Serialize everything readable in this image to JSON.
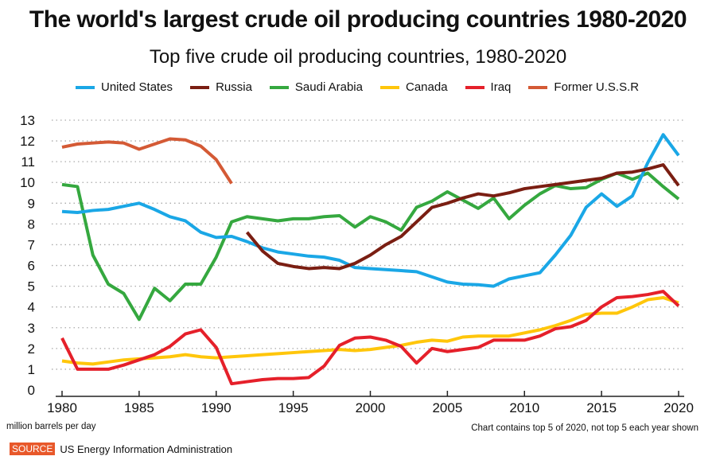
{
  "chart_data": {
    "type": "line",
    "title": "The world's largest crude oil producing countries 1980-2020",
    "subtitle": "Top five crude oil producing countries, 1980-2020",
    "ylabel": "million barrels per day",
    "note": "Chart contains top 5 of 2020, not top 5 each year shown",
    "xlim": [
      1980,
      2020
    ],
    "ylim": [
      0,
      13
    ],
    "xticks": [
      1980,
      1985,
      1990,
      1995,
      2000,
      2005,
      2010,
      2015,
      2020
    ],
    "yticks": [
      0,
      1,
      2,
      3,
      4,
      5,
      6,
      7,
      8,
      9,
      10,
      11,
      12,
      13
    ],
    "grid": true,
    "legend_position": "top",
    "series": [
      {
        "name": "United States",
        "color": "#1aa7e6",
        "start": 1980,
        "values": [
          8.6,
          8.55,
          8.65,
          8.7,
          8.85,
          9.0,
          8.7,
          8.35,
          8.15,
          7.6,
          7.35,
          7.4,
          7.15,
          6.85,
          6.65,
          6.55,
          6.45,
          6.4,
          6.25,
          5.9,
          5.85,
          5.8,
          5.75,
          5.7,
          5.45,
          5.2,
          5.1,
          5.07,
          5.0,
          5.35,
          5.5,
          5.65,
          6.5,
          7.45,
          8.8,
          9.45,
          8.85,
          9.35,
          10.95,
          12.3,
          11.3
        ]
      },
      {
        "name": "Russia",
        "color": "#7a1e12",
        "start": 1992,
        "values": [
          7.6,
          6.7,
          6.1,
          5.95,
          5.85,
          5.9,
          5.85,
          6.1,
          6.5,
          7.0,
          7.4,
          8.1,
          8.8,
          9.0,
          9.25,
          9.45,
          9.35,
          9.5,
          9.7,
          9.8,
          9.9,
          10.0,
          10.1,
          10.2,
          10.45,
          10.5,
          10.65,
          10.85,
          9.85
        ]
      },
      {
        "name": "Saudi Arabia",
        "color": "#35a83f",
        "start": 1980,
        "values": [
          9.9,
          9.8,
          6.5,
          5.1,
          4.65,
          3.4,
          4.9,
          4.3,
          5.1,
          5.1,
          6.4,
          8.1,
          8.35,
          8.25,
          8.15,
          8.25,
          8.25,
          8.35,
          8.4,
          7.85,
          8.35,
          8.1,
          7.7,
          8.8,
          9.1,
          9.55,
          9.15,
          8.75,
          9.25,
          8.25,
          8.9,
          9.45,
          9.85,
          9.7,
          9.75,
          10.15,
          10.45,
          10.15,
          10.45,
          9.8,
          9.2
        ]
      },
      {
        "name": "Canada",
        "color": "#ffc60b",
        "start": 1980,
        "values": [
          1.4,
          1.3,
          1.25,
          1.35,
          1.45,
          1.5,
          1.55,
          1.6,
          1.7,
          1.6,
          1.55,
          1.6,
          1.65,
          1.7,
          1.75,
          1.8,
          1.85,
          1.9,
          1.95,
          1.9,
          1.95,
          2.05,
          2.15,
          2.3,
          2.4,
          2.35,
          2.55,
          2.6,
          2.6,
          2.6,
          2.75,
          2.9,
          3.1,
          3.35,
          3.65,
          3.7,
          3.7,
          4.0,
          4.35,
          4.45,
          4.2
        ]
      },
      {
        "name": "Iraq",
        "color": "#e5202a",
        "start": 1980,
        "values": [
          2.5,
          1.0,
          1.0,
          1.0,
          1.2,
          1.45,
          1.7,
          2.1,
          2.7,
          2.9,
          2.05,
          0.3,
          0.4,
          0.5,
          0.55,
          0.55,
          0.6,
          1.15,
          2.15,
          2.5,
          2.55,
          2.4,
          2.1,
          1.3,
          2.0,
          1.85,
          1.95,
          2.05,
          2.4,
          2.4,
          2.4,
          2.6,
          2.95,
          3.05,
          3.35,
          4.0,
          4.45,
          4.5,
          4.6,
          4.75,
          4.05
        ]
      },
      {
        "name": "Former U.S.S.R",
        "color": "#d45a35",
        "start": 1980,
        "values": [
          11.7,
          11.85,
          11.9,
          11.95,
          11.9,
          11.6,
          11.85,
          12.1,
          12.05,
          11.75,
          11.1,
          9.95
        ]
      }
    ]
  },
  "source": {
    "badge": "SOURCE",
    "text": "US  Energy Information Administration"
  }
}
